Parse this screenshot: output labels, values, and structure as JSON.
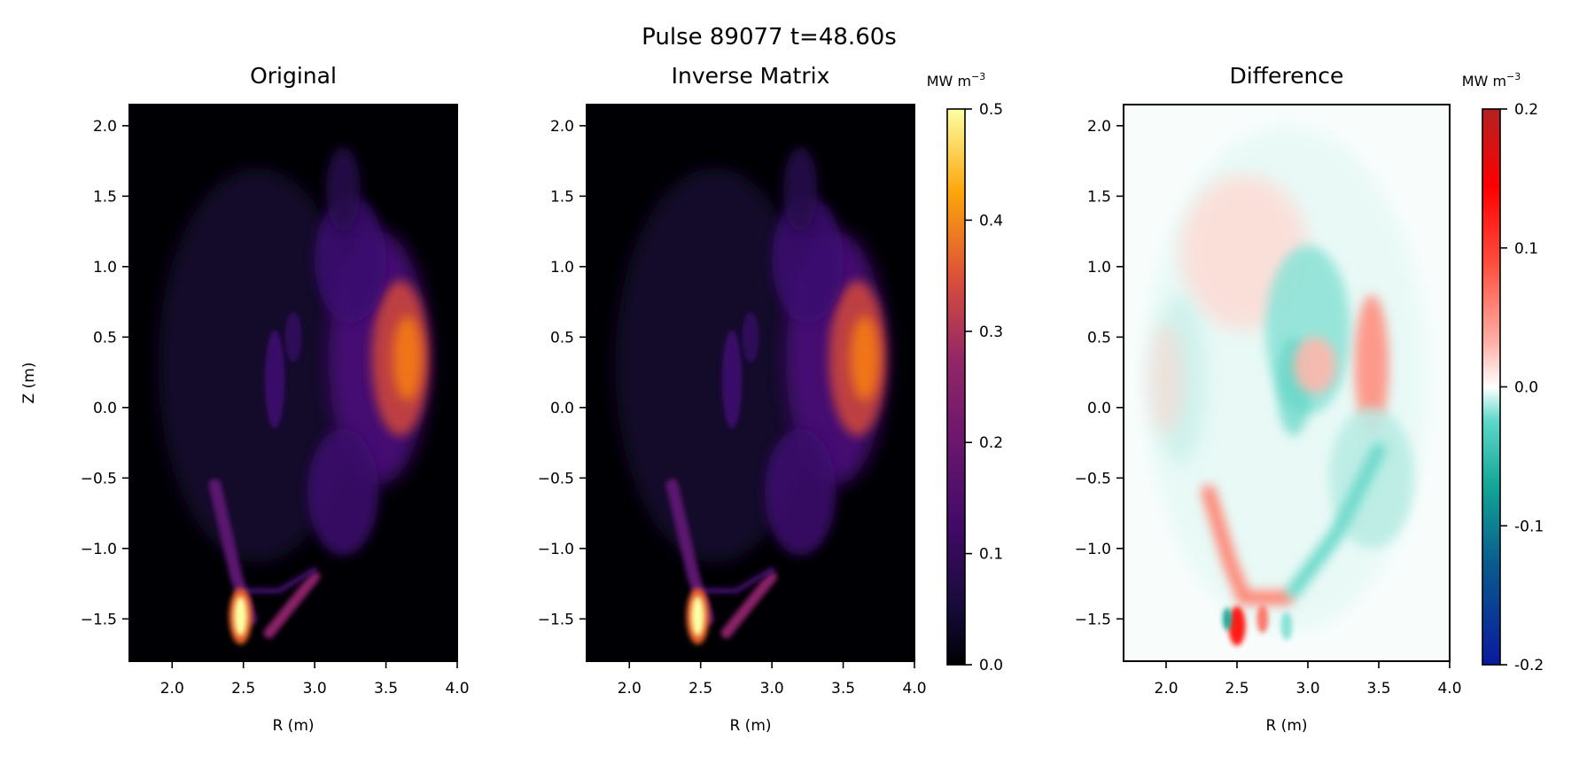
{
  "suptitle": "Pulse 89077 t=48.60s",
  "chart_data": [
    {
      "type": "heatmap",
      "title": "Original",
      "xlabel": "R (m)",
      "ylabel": "Z (m)",
      "xlim": [
        1.7,
        4.0
      ],
      "ylim": [
        -1.8,
        2.15
      ],
      "xticks": [
        "2.0",
        "2.5",
        "3.0",
        "3.5",
        "4.0"
      ],
      "yticks": [
        "2.0",
        "1.5",
        "1.0",
        "0.5",
        "0.0",
        "−0.5",
        "−1.0",
        "−1.5"
      ],
      "colormap": "inferno",
      "background": "#000004"
    },
    {
      "type": "heatmap",
      "title": "Inverse Matrix",
      "xlabel": "R (m)",
      "xlim": [
        1.7,
        4.0
      ],
      "ylim": [
        -1.8,
        2.15
      ],
      "xticks": [
        "2.0",
        "2.5",
        "3.0",
        "3.5",
        "4.0"
      ],
      "yticks": [
        "2.0",
        "1.5",
        "1.0",
        "0.5",
        "0.0",
        "−0.5",
        "−1.0",
        "−1.5"
      ],
      "colormap": "inferno",
      "background": "#000004",
      "colorbar": {
        "label": "MW m",
        "label_sup": "−3",
        "range": [
          0.0,
          0.5
        ],
        "ticks": [
          "0.5",
          "0.4",
          "0.3",
          "0.2",
          "0.1",
          "0.0"
        ]
      }
    },
    {
      "type": "heatmap",
      "title": "Difference",
      "xlabel": "R (m)",
      "xlim": [
        1.7,
        4.0
      ],
      "ylim": [
        -1.8,
        2.15
      ],
      "xticks": [
        "2.0",
        "2.5",
        "3.0",
        "3.5",
        "4.0"
      ],
      "yticks": [
        "2.0",
        "1.5",
        "1.0",
        "0.5",
        "0.0",
        "−0.5",
        "−1.0",
        "−1.5"
      ],
      "colormap": "diverging teal-white-red",
      "background": "#f8fdfc",
      "colorbar": {
        "label": "MW m",
        "label_sup": "−3",
        "range": [
          -0.2,
          0.2
        ],
        "ticks": [
          "0.2",
          "0.1",
          "0.0",
          "-0.1",
          "-0.2"
        ]
      }
    }
  ]
}
